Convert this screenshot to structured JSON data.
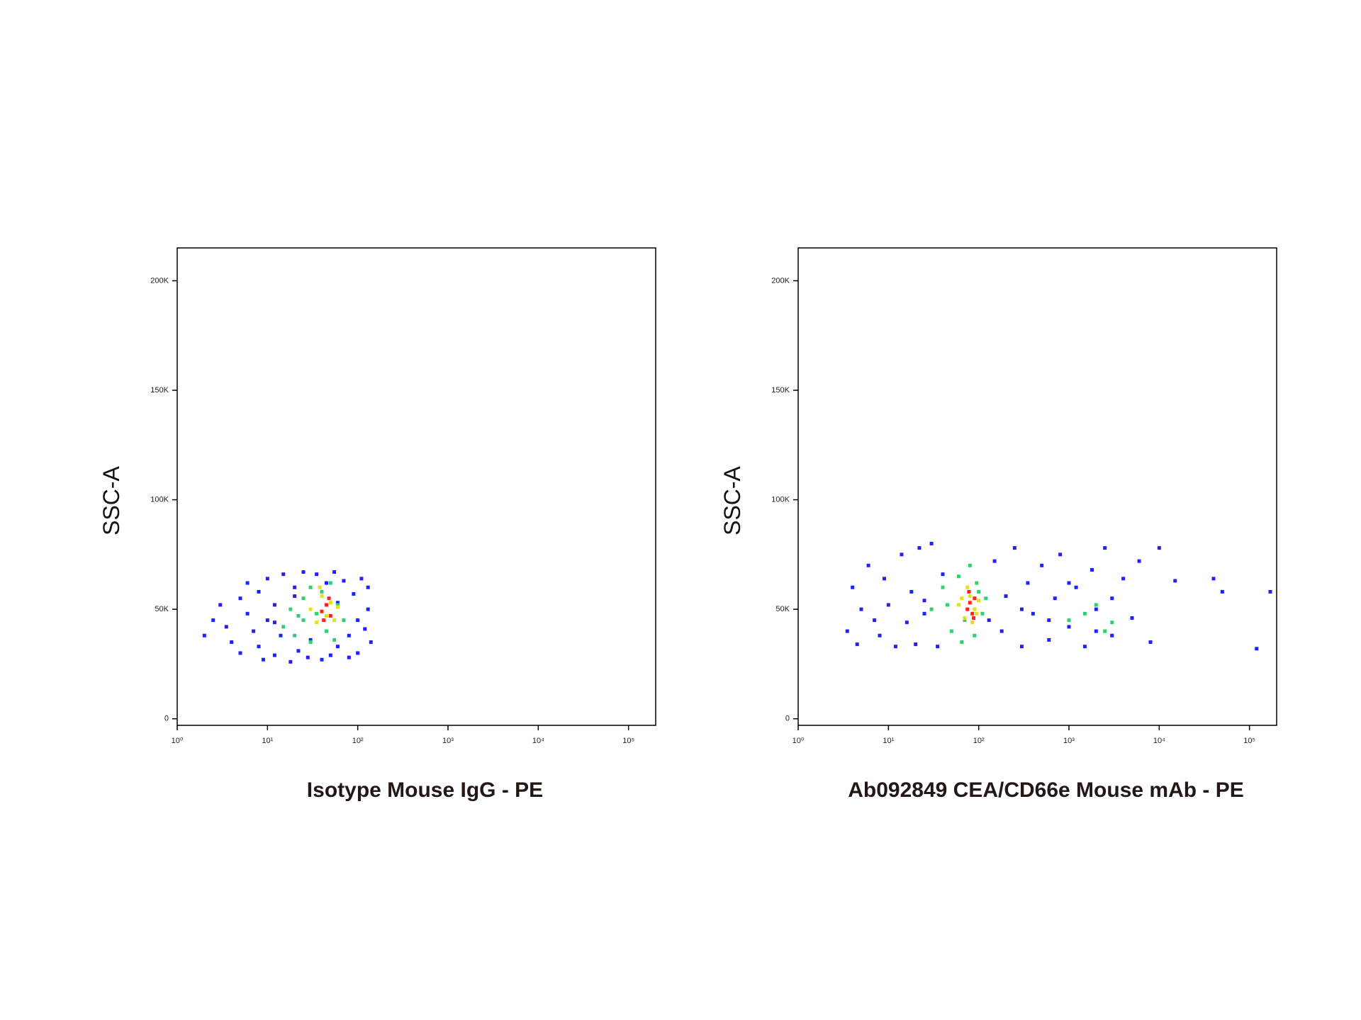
{
  "chart_data": [
    {
      "type": "scatter",
      "x_label": "Isotype Mouse IgG - PE",
      "y_label": "SSC-A",
      "xscale": "log",
      "xlim": [
        1,
        200000
      ],
      "ylim": [
        -3000,
        215000
      ],
      "xticks": [
        {
          "value": 1,
          "label": "10⁰"
        },
        {
          "value": 10,
          "label": "10¹"
        },
        {
          "value": 100,
          "label": "10²"
        },
        {
          "value": 1000,
          "label": "10³"
        },
        {
          "value": 10000,
          "label": "10⁴"
        },
        {
          "value": 100000,
          "label": "10⁵"
        }
      ],
      "yticks": [
        0,
        {
          "value": 50000,
          "label": "50K"
        },
        {
          "value": 100000,
          "label": "100K"
        },
        {
          "value": 150000,
          "label": "150K"
        },
        {
          "value": 200000,
          "label": "200K"
        }
      ],
      "series": [
        {
          "color": "#1f1fff",
          "x": [
            2,
            2.5,
            3,
            3.5,
            4,
            5,
            5,
            6,
            6,
            7,
            8,
            8,
            9,
            10,
            10,
            12,
            12,
            14,
            15,
            18,
            20,
            22,
            25,
            28,
            30,
            35,
            40,
            45,
            50,
            55,
            60,
            70,
            80,
            90,
            100,
            110,
            120,
            130,
            140,
            130,
            100,
            80,
            12,
            20,
            60
          ],
          "values": [
            38000,
            45000,
            52000,
            42000,
            35000,
            55000,
            30000,
            48000,
            62000,
            40000,
            33000,
            58000,
            27000,
            45000,
            64000,
            29000,
            52000,
            38000,
            66000,
            26000,
            60000,
            31000,
            67000,
            28000,
            36000,
            66000,
            27000,
            62000,
            29000,
            67000,
            33000,
            63000,
            28000,
            57000,
            30000,
            64000,
            41000,
            50000,
            35000,
            60000,
            45000,
            38000,
            44000,
            56000,
            53000
          ]
        },
        {
          "color": "#2fd070",
          "x": [
            15,
            18,
            20,
            25,
            25,
            30,
            30,
            35,
            40,
            45,
            50,
            60,
            70,
            22,
            55
          ],
          "values": [
            42000,
            50000,
            38000,
            55000,
            45000,
            60000,
            35000,
            48000,
            58000,
            40000,
            62000,
            52000,
            45000,
            47000,
            36000
          ]
        },
        {
          "color": "#e2e21a",
          "x": [
            30,
            35,
            40,
            45,
            50,
            55,
            60,
            38
          ],
          "values": [
            50000,
            44000,
            56000,
            47000,
            53000,
            45000,
            51000,
            60000
          ]
        },
        {
          "color": "#ff2020",
          "x": [
            40,
            45,
            50,
            48,
            42
          ],
          "values": [
            49000,
            52000,
            47000,
            55000,
            45000
          ]
        }
      ]
    },
    {
      "type": "scatter",
      "x_label": "Ab092849 CEA/CD66e Mouse mAb - PE",
      "y_label": "SSC-A",
      "xscale": "log",
      "xlim": [
        1,
        200000
      ],
      "ylim": [
        -3000,
        215000
      ],
      "xticks": [
        {
          "value": 1,
          "label": "10⁰"
        },
        {
          "value": 10,
          "label": "10¹"
        },
        {
          "value": 100,
          "label": "10²"
        },
        {
          "value": 1000,
          "label": "10³"
        },
        {
          "value": 10000,
          "label": "10⁴"
        },
        {
          "value": 100000,
          "label": "10⁵"
        }
      ],
      "yticks": [
        0,
        {
          "value": 50000,
          "label": "50K"
        },
        {
          "value": 100000,
          "label": "100K"
        },
        {
          "value": 150000,
          "label": "150K"
        },
        {
          "value": 200000,
          "label": "200K"
        }
      ],
      "series": [
        {
          "color": "#1f1fff",
          "x": [
            3.5,
            4,
            4.5,
            5,
            6,
            7,
            8,
            9,
            10,
            12,
            14,
            16,
            18,
            20,
            22,
            25,
            30,
            35,
            40,
            150,
            180,
            200,
            250,
            300,
            350,
            400,
            500,
            600,
            700,
            800,
            1000,
            1200,
            1500,
            1800,
            2000,
            2500,
            3000,
            4000,
            5000,
            6000,
            8000,
            10000,
            15000,
            40000,
            50000,
            120000,
            170000,
            25,
            130,
            300,
            1000,
            2000,
            3000,
            600
          ],
          "values": [
            40000,
            60000,
            34000,
            50000,
            70000,
            45000,
            38000,
            64000,
            52000,
            33000,
            75000,
            44000,
            58000,
            34000,
            78000,
            48000,
            80000,
            33000,
            66000,
            72000,
            40000,
            56000,
            78000,
            33000,
            62000,
            48000,
            70000,
            36000,
            55000,
            75000,
            42000,
            60000,
            33000,
            68000,
            50000,
            78000,
            38000,
            64000,
            46000,
            72000,
            35000,
            78000,
            63000,
            64000,
            58000,
            32000,
            58000,
            54000,
            45000,
            50000,
            62000,
            40000,
            55000,
            45000
          ]
        },
        {
          "color": "#2fd070",
          "x": [
            30,
            40,
            50,
            60,
            70,
            80,
            90,
            100,
            110,
            120,
            45,
            65,
            95,
            1000,
            2000,
            3000,
            1500,
            2500
          ],
          "values": [
            50000,
            60000,
            40000,
            65000,
            45000,
            70000,
            38000,
            58000,
            48000,
            55000,
            52000,
            35000,
            62000,
            45000,
            52000,
            44000,
            48000,
            40000
          ]
        },
        {
          "color": "#e2e21a",
          "x": [
            60,
            70,
            80,
            90,
            100,
            75,
            85,
            65,
            95
          ],
          "values": [
            52000,
            46000,
            56000,
            50000,
            54000,
            60000,
            44000,
            55000,
            48000
          ]
        },
        {
          "color": "#ff2020",
          "x": [
            75,
            80,
            85,
            90,
            78,
            88
          ],
          "values": [
            50000,
            53000,
            48000,
            55000,
            58000,
            46000
          ]
        }
      ]
    }
  ]
}
